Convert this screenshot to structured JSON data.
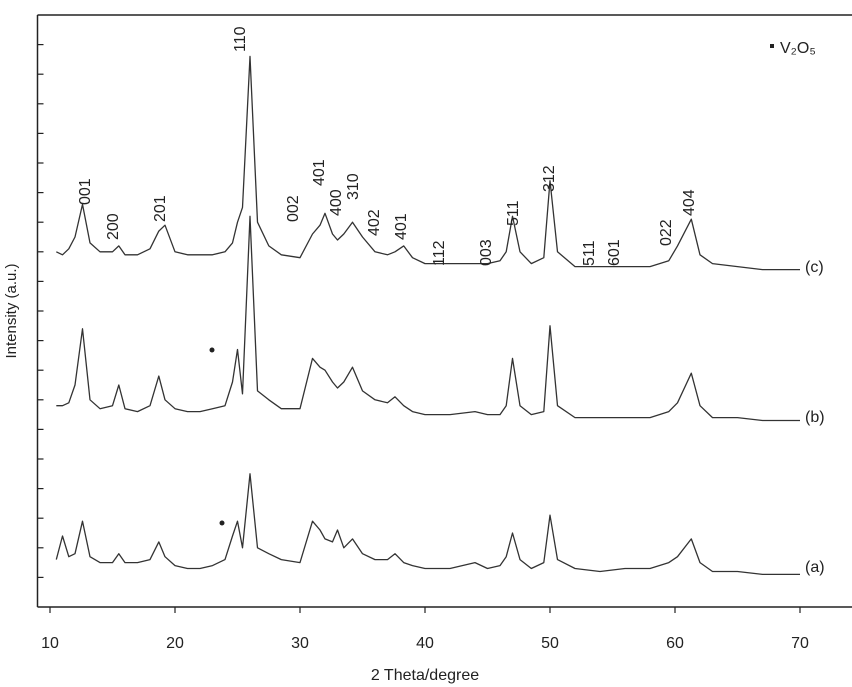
{
  "chart_data": {
    "type": "line",
    "x_label": "2 Theta/degree",
    "y_label": "Intensity (a.u.)",
    "legend_label": "V₂O₅",
    "x": [
      10.5,
      11,
      11.5,
      12,
      12.6,
      13.2,
      14,
      15,
      15.5,
      16,
      17,
      18,
      18.7,
      19.2,
      20,
      21,
      22,
      23,
      24,
      24.6,
      25,
      25.4,
      26,
      26.6,
      27.5,
      28.5,
      30,
      31,
      31.6,
      32,
      32.6,
      33,
      33.5,
      34.2,
      35,
      36,
      37,
      37.6,
      38.3,
      39,
      40,
      42,
      44,
      45,
      46,
      46.5,
      47,
      47.6,
      48.5,
      49.5,
      50,
      50.6,
      52,
      54,
      56,
      58,
      59.5,
      60.2,
      61.3,
      62,
      63,
      65,
      67,
      70
    ],
    "series": [
      {
        "name": "(c)",
        "color": "#333333",
        "values": [
          12.0,
          11.9,
          12.1,
          12.5,
          13.6,
          12.3,
          12.0,
          12.0,
          12.2,
          11.9,
          11.9,
          12.1,
          12.7,
          12.9,
          12.0,
          11.9,
          11.9,
          11.9,
          12.0,
          12.3,
          13.0,
          13.5,
          18.6,
          13.0,
          12.2,
          11.9,
          11.8,
          12.6,
          12.9,
          13.3,
          12.6,
          12.4,
          12.6,
          13.0,
          12.5,
          12.0,
          11.9,
          12.0,
          12.2,
          11.8,
          11.6,
          11.6,
          11.6,
          11.6,
          11.7,
          12.0,
          13.2,
          12.0,
          11.6,
          11.8,
          14.4,
          12.0,
          11.5,
          11.5,
          11.5,
          11.5,
          11.7,
          12.2,
          13.1,
          11.9,
          11.6,
          11.5,
          11.4,
          11.4
        ]
      },
      {
        "name": "(b)",
        "color": "#333333",
        "values": [
          6.8,
          6.8,
          6.9,
          7.5,
          9.4,
          7.0,
          6.7,
          6.8,
          7.5,
          6.7,
          6.6,
          6.8,
          7.8,
          7.0,
          6.7,
          6.6,
          6.6,
          6.7,
          6.8,
          7.6,
          8.7,
          7.2,
          13.2,
          7.3,
          7.0,
          6.7,
          6.7,
          8.4,
          8.1,
          8.0,
          7.6,
          7.4,
          7.6,
          8.1,
          7.3,
          7.0,
          6.9,
          7.1,
          6.8,
          6.6,
          6.5,
          6.5,
          6.6,
          6.5,
          6.5,
          6.8,
          8.4,
          6.8,
          6.5,
          6.6,
          9.5,
          6.8,
          6.4,
          6.4,
          6.4,
          6.4,
          6.6,
          6.9,
          7.9,
          6.8,
          6.4,
          6.4,
          6.3,
          6.3
        ]
      },
      {
        "name": "(a)",
        "color": "#333333",
        "values": [
          1.6,
          2.4,
          1.7,
          1.8,
          2.9,
          1.7,
          1.5,
          1.5,
          1.8,
          1.5,
          1.5,
          1.6,
          2.2,
          1.7,
          1.4,
          1.3,
          1.3,
          1.4,
          1.6,
          2.4,
          2.9,
          2.0,
          4.5,
          2.0,
          1.8,
          1.6,
          1.5,
          2.9,
          2.6,
          2.3,
          2.2,
          2.6,
          2.0,
          2.3,
          1.8,
          1.6,
          1.6,
          1.8,
          1.5,
          1.4,
          1.3,
          1.3,
          1.5,
          1.3,
          1.4,
          1.7,
          2.5,
          1.6,
          1.3,
          1.5,
          3.1,
          1.6,
          1.3,
          1.2,
          1.3,
          1.3,
          1.5,
          1.7,
          2.3,
          1.5,
          1.2,
          1.2,
          1.1,
          1.1
        ]
      }
    ],
    "peak_labels": [
      "001",
      "200",
      "201",
      "110",
      "002",
      "401",
      "400",
      "310",
      "402",
      "401",
      "112",
      "003",
      "511",
      "312",
      "511",
      "601",
      "022",
      "404"
    ],
    "xlim": [
      9,
      74
    ],
    "xticks": [
      10,
      20,
      30,
      40,
      50,
      60,
      70
    ],
    "ylim": [
      0,
      20
    ],
    "yticks": [
      1,
      2,
      3,
      4,
      5,
      6,
      7,
      8,
      9,
      10,
      11,
      12,
      13,
      14,
      15,
      16,
      17,
      18,
      19
    ]
  }
}
